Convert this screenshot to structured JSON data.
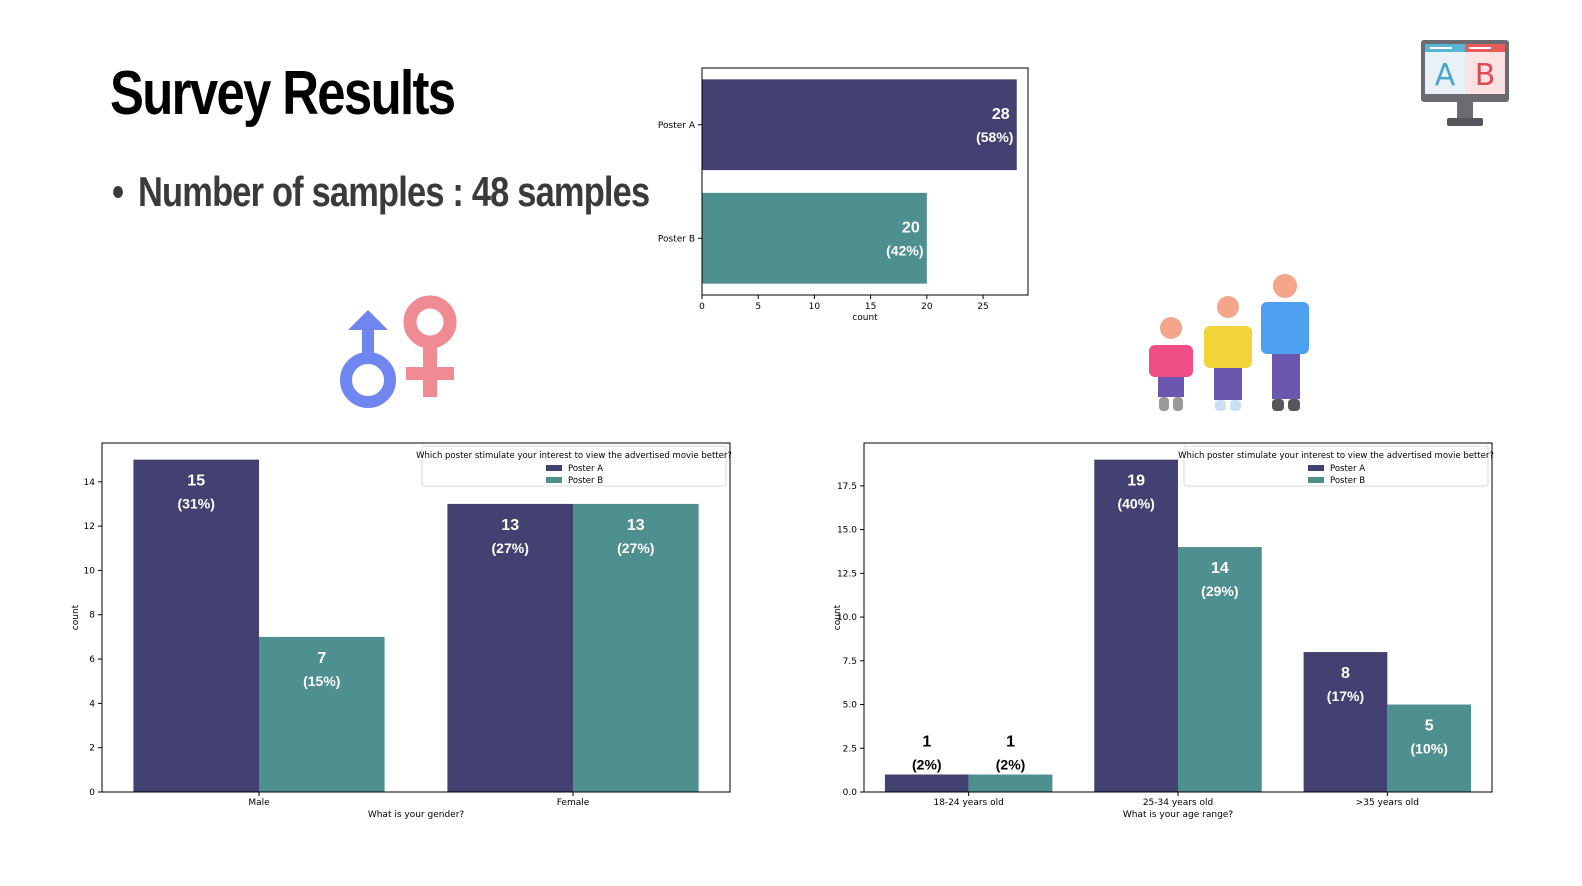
{
  "slide": {
    "title": "Survey Results",
    "bullet": "Number of samples : 48 samples"
  },
  "icons": {
    "ab_test": {
      "name": "ab-test-monitor-icon",
      "letters": [
        "A",
        "B"
      ]
    },
    "gender": {
      "name": "gender-symbols-icon"
    },
    "age": {
      "name": "age-group-people-icon"
    }
  },
  "colors": {
    "poster_a": "#434172",
    "poster_b": "#4e8f90"
  },
  "chart_data": [
    {
      "id": "poster-preference",
      "type": "bar",
      "orientation": "horizontal",
      "categories": [
        "Poster A",
        "Poster B"
      ],
      "values": [
        28,
        20
      ],
      "data_labels": [
        [
          "28",
          "(58%)"
        ],
        [
          "20",
          "(42%)"
        ]
      ],
      "xlabel": "count",
      "xlim": [
        0,
        29
      ],
      "xticks": [
        "0",
        "5",
        "10",
        "15",
        "20",
        "25"
      ],
      "colors": [
        "#434172",
        "#4e8f90"
      ]
    },
    {
      "id": "gender-chart",
      "type": "bar",
      "categories": [
        "Male",
        "Female"
      ],
      "series": [
        {
          "name": "Poster A",
          "values": [
            15,
            13
          ],
          "labels": [
            [
              "15",
              "(31%)"
            ],
            [
              "13",
              "(27%)"
            ]
          ]
        },
        {
          "name": "Poster B",
          "values": [
            7,
            13
          ],
          "labels": [
            [
              "7",
              "(15%)"
            ],
            [
              "13",
              "(27%)"
            ]
          ]
        }
      ],
      "xlabel": "What is your gender?",
      "ylabel": "count",
      "ylim": [
        0,
        15.75
      ],
      "yticks": [
        "0",
        "2",
        "4",
        "6",
        "8",
        "10",
        "12",
        "14"
      ],
      "legend_title": "Which poster stimulate your interest to view the advertised movie better?",
      "legend_position": "top-right"
    },
    {
      "id": "age-chart",
      "type": "bar",
      "categories": [
        "18-24 years old",
        "25-34 years old",
        ">35 years old"
      ],
      "series": [
        {
          "name": "Poster A",
          "values": [
            1,
            19,
            8
          ],
          "labels": [
            [
              "1",
              "(2%)"
            ],
            [
              "19",
              "(40%)"
            ],
            [
              "8",
              "(17%)"
            ]
          ]
        },
        {
          "name": "Poster B",
          "values": [
            1,
            14,
            5
          ],
          "labels": [
            [
              "1",
              "(2%)"
            ],
            [
              "14",
              "(29%)"
            ],
            [
              "5",
              "(10%)"
            ]
          ]
        }
      ],
      "xlabel": "What is your age range?",
      "ylabel": "count",
      "ylim": [
        0,
        19.95
      ],
      "yticks": [
        "0.0",
        "2.5",
        "5.0",
        "7.5",
        "10.0",
        "12.5",
        "15.0",
        "17.5"
      ],
      "legend_title": "Which poster stimulate your interest to view the advertised movie better?",
      "legend_position": "top-right"
    }
  ]
}
